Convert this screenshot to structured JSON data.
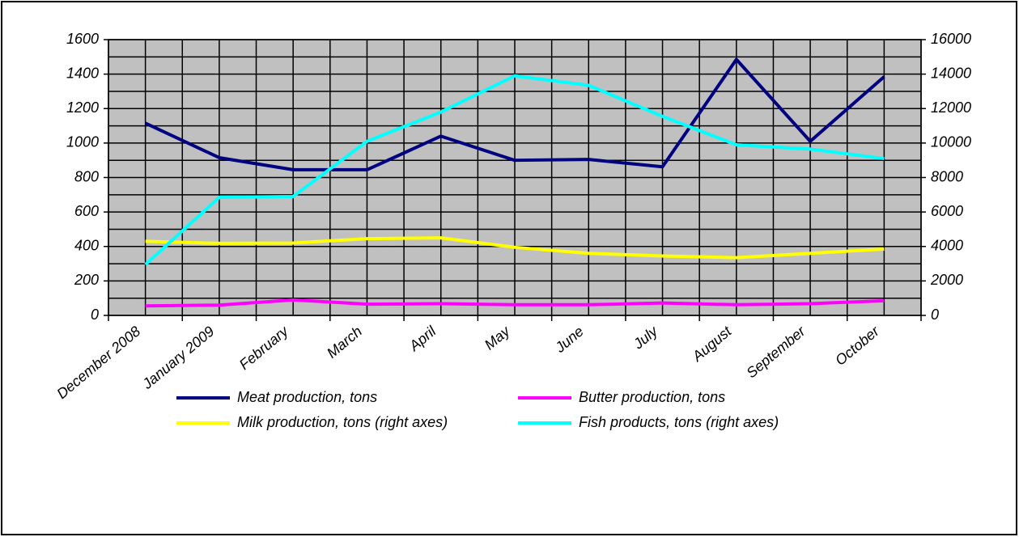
{
  "chart_data": {
    "type": "line",
    "categories": [
      "December 2008",
      "January 2009",
      "February",
      "March",
      "April",
      "May",
      "June",
      "July",
      "August",
      "September",
      "October"
    ],
    "series": [
      {
        "name": "Meat production, tons",
        "color": "#000080",
        "values": [
          1115,
          915,
          845,
          845,
          1040,
          900,
          905,
          862,
          1485,
          1010,
          1385
        ]
      },
      {
        "name": "Butter production, tons",
        "color": "#ff00ff",
        "values": [
          55,
          60,
          90,
          65,
          68,
          62,
          62,
          72,
          62,
          68,
          85
        ]
      },
      {
        "name": "Milk production, tons (right axes)",
        "color": "#ffff00",
        "axis": "y2",
        "values": [
          4300,
          4180,
          4200,
          4450,
          4500,
          3950,
          3600,
          3450,
          3350,
          3600,
          3850
        ]
      },
      {
        "name": "Fish products, tons (right axes)",
        "color": "#00ffff",
        "axis": "y2",
        "values": [
          2950,
          6850,
          6900,
          10100,
          11800,
          13900,
          13350,
          11550,
          9900,
          9650,
          9100
        ]
      }
    ],
    "ylim": [
      0,
      1600
    ],
    "yticks": [
      0,
      200,
      400,
      600,
      800,
      1000,
      1200,
      1400,
      1600
    ],
    "y2lim": [
      0,
      16000
    ],
    "y2ticks": [
      0,
      2000,
      4000,
      6000,
      8000,
      10000,
      12000,
      14000,
      16000
    ],
    "grid": true,
    "plot_background": "#c0c0c0"
  }
}
